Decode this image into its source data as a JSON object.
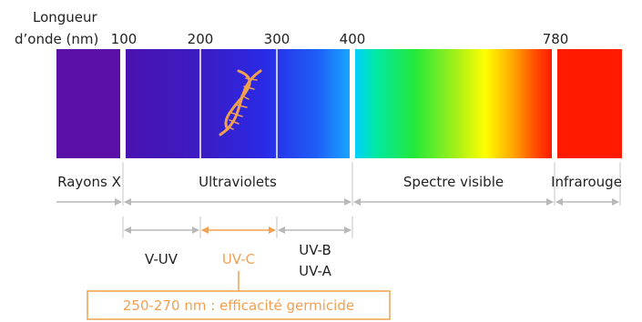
{
  "axis": {
    "title_line1": "Longueur",
    "title_line2": "d’onde (nm)",
    "ticks": [
      "100",
      "200",
      "300",
      "400",
      "780"
    ]
  },
  "bands": {
    "xray": "Rayons X",
    "uv": "Ultraviolets",
    "visible": "Spectre visible",
    "infrared": "Infrarouge"
  },
  "uv_sub": {
    "vuv": "V-UV",
    "uvc": "UV-C",
    "uvb": "UV-B",
    "uva": "UV-A"
  },
  "callout": "250-270 nm : efficacité germicide",
  "icon": "dna-helix-icon",
  "colors": {
    "accent": "#f0a050",
    "arrow_gray": "#b8b8b8",
    "text": "#222222",
    "xray": "#5a0fa6",
    "infrared": "#ff1a00"
  }
}
